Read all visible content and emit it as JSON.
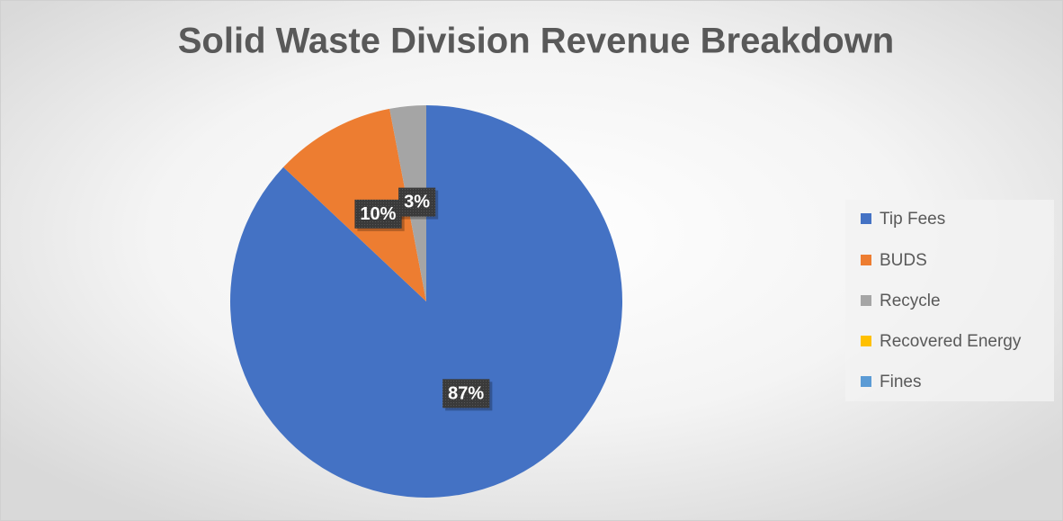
{
  "chart_data": {
    "type": "pie",
    "title": "Solid Waste Division Revenue Breakdown",
    "categories": [
      "Tip Fees",
      "BUDS",
      "Recycle",
      "Recovered Energy",
      "Fines"
    ],
    "values": [
      87,
      10,
      3,
      0,
      0
    ],
    "value_labels": [
      "87%",
      "10%",
      "3%",
      null,
      null
    ],
    "colors": [
      "#4472c4",
      "#ed7d31",
      "#a5a5a5",
      "#ffc000",
      "#5b9bd5"
    ],
    "legend": "right"
  }
}
